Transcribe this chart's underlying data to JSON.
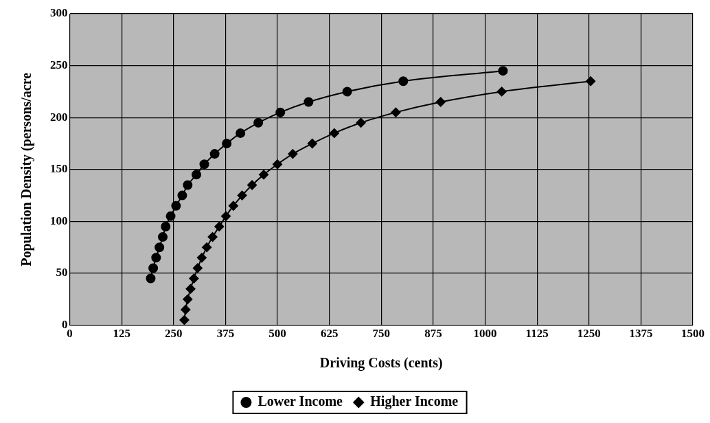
{
  "chart_data": {
    "type": "line",
    "xlabel": "Driving Costs (cents)",
    "ylabel": "Population Density (persons/acre",
    "xlim": [
      0,
      1500
    ],
    "xticks": [
      0,
      125,
      250,
      375,
      500,
      625,
      750,
      875,
      1000,
      1125,
      1250,
      1375,
      1500
    ],
    "ylim": [
      0,
      300
    ],
    "yticks": [
      0,
      50,
      100,
      150,
      200,
      250,
      300
    ],
    "grid": true,
    "legend": "bottom",
    "series": [
      {
        "name": "Lower Income",
        "color": "#000000",
        "marker": "circle",
        "x": [
          195,
          201,
          208,
          216,
          224,
          231,
          243,
          256,
          271,
          284,
          305,
          324,
          349,
          378,
          411,
          454,
          507,
          575,
          668,
          803,
          1043
        ],
        "values": [
          45,
          55,
          65,
          75,
          85,
          95,
          105,
          115,
          125,
          135,
          145,
          155,
          165,
          175,
          185,
          195,
          205,
          215,
          225,
          235,
          245
        ]
      },
      {
        "name": "Higher Income",
        "color": "#000000",
        "marker": "diamond",
        "x": [
          276,
          279,
          284,
          291,
          299,
          308,
          318,
          330,
          344,
          360,
          376,
          394,
          415,
          439,
          467,
          500,
          537,
          584,
          637,
          701,
          785,
          893,
          1040,
          1254
        ],
        "values": [
          5,
          15,
          25,
          35,
          45,
          55,
          65,
          75,
          85,
          95,
          105,
          115,
          125,
          135,
          145,
          155,
          165,
          175,
          185,
          195,
          205,
          215,
          225,
          235
        ]
      }
    ]
  }
}
